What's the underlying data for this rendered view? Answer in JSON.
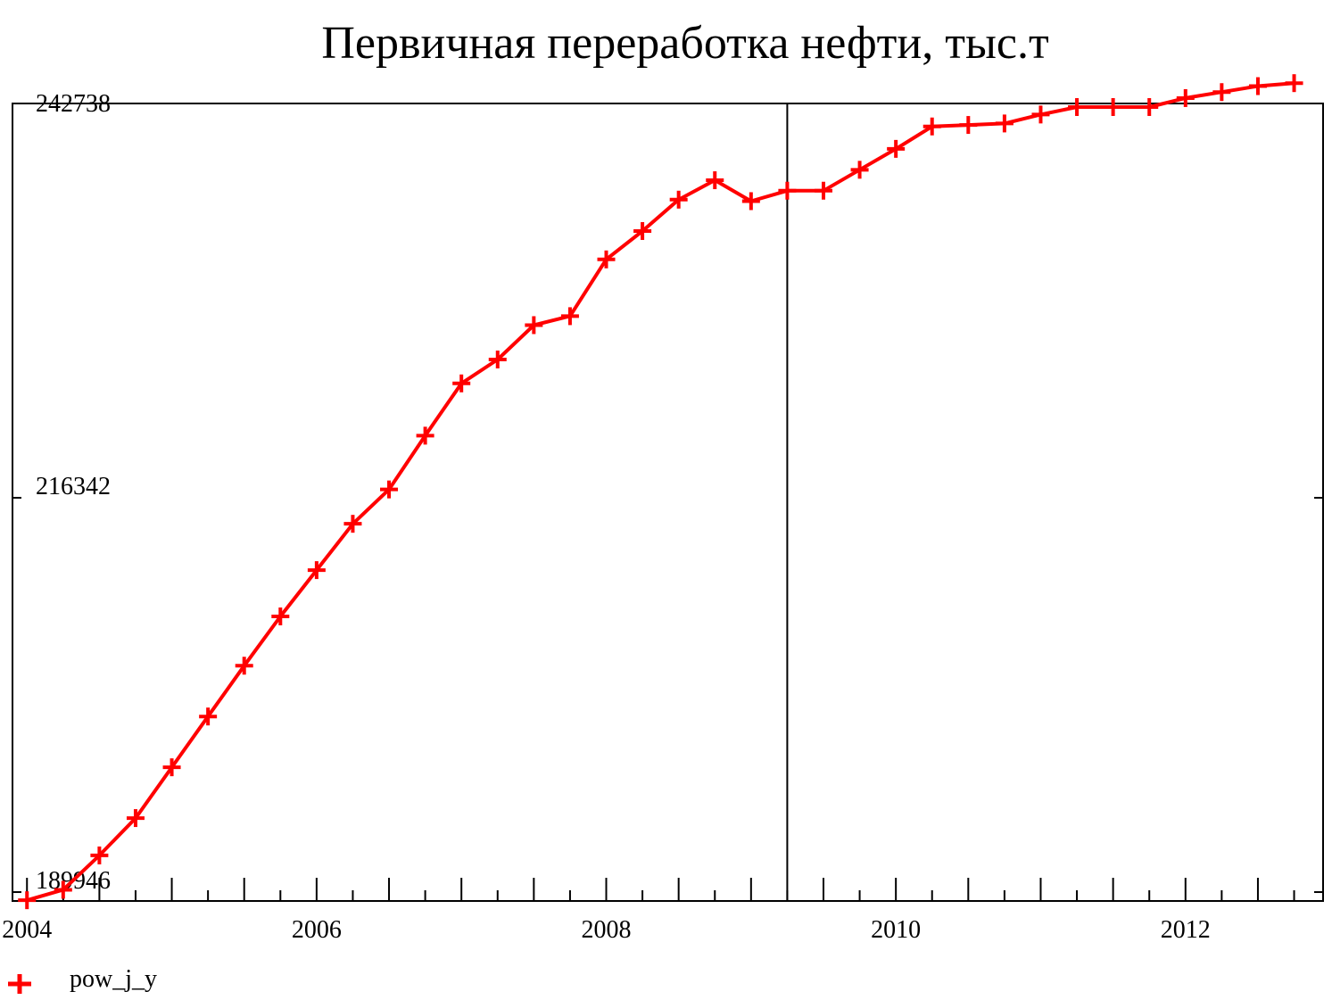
{
  "chart_data": {
    "type": "line",
    "title": "Первичная переработка нефти, тыс.т",
    "xlabel": "",
    "ylabel": "",
    "x_ticks": [
      2004,
      2006,
      2008,
      2010,
      2012
    ],
    "x_tick_labels": [
      "2004",
      "2006",
      "2008",
      "2010",
      "2012"
    ],
    "y_tick_labels": [
      "242738",
      "216342",
      "189946"
    ],
    "y_ticks": [
      242738,
      216342,
      189946
    ],
    "xlim": [
      2003.9,
      2012.95
    ],
    "ylim": [
      189350,
      242738
    ],
    "reference_line_x": 2009.25,
    "legend_position": "bottom-left",
    "line_color": "#ff0000",
    "axis_color": "#000000",
    "series": [
      {
        "name": "pow_j_y",
        "marker": "plus",
        "x": [
          2004.0,
          2004.25,
          2004.5,
          2004.75,
          2005.0,
          2005.25,
          2005.5,
          2005.75,
          2006.0,
          2006.25,
          2006.5,
          2006.75,
          2007.0,
          2007.25,
          2007.5,
          2007.75,
          2008.0,
          2008.25,
          2008.5,
          2008.75,
          2009.0,
          2009.25,
          2009.5,
          2009.75,
          2010.0,
          2010.25,
          2010.5,
          2010.75,
          2011.0,
          2011.25,
          2011.5,
          2011.75,
          2012.0,
          2012.25,
          2012.5,
          2012.75
        ],
        "values": [
          189400,
          190100,
          192400,
          194900,
          198300,
          201700,
          205100,
          208400,
          211500,
          214600,
          216900,
          220500,
          224000,
          225600,
          227900,
          228500,
          232300,
          234200,
          236300,
          237600,
          236200,
          236900,
          236900,
          238300,
          239700,
          241200,
          241300,
          241400,
          242000,
          242500,
          242500,
          242500,
          243100,
          243500,
          243900,
          244100
        ]
      }
    ]
  }
}
